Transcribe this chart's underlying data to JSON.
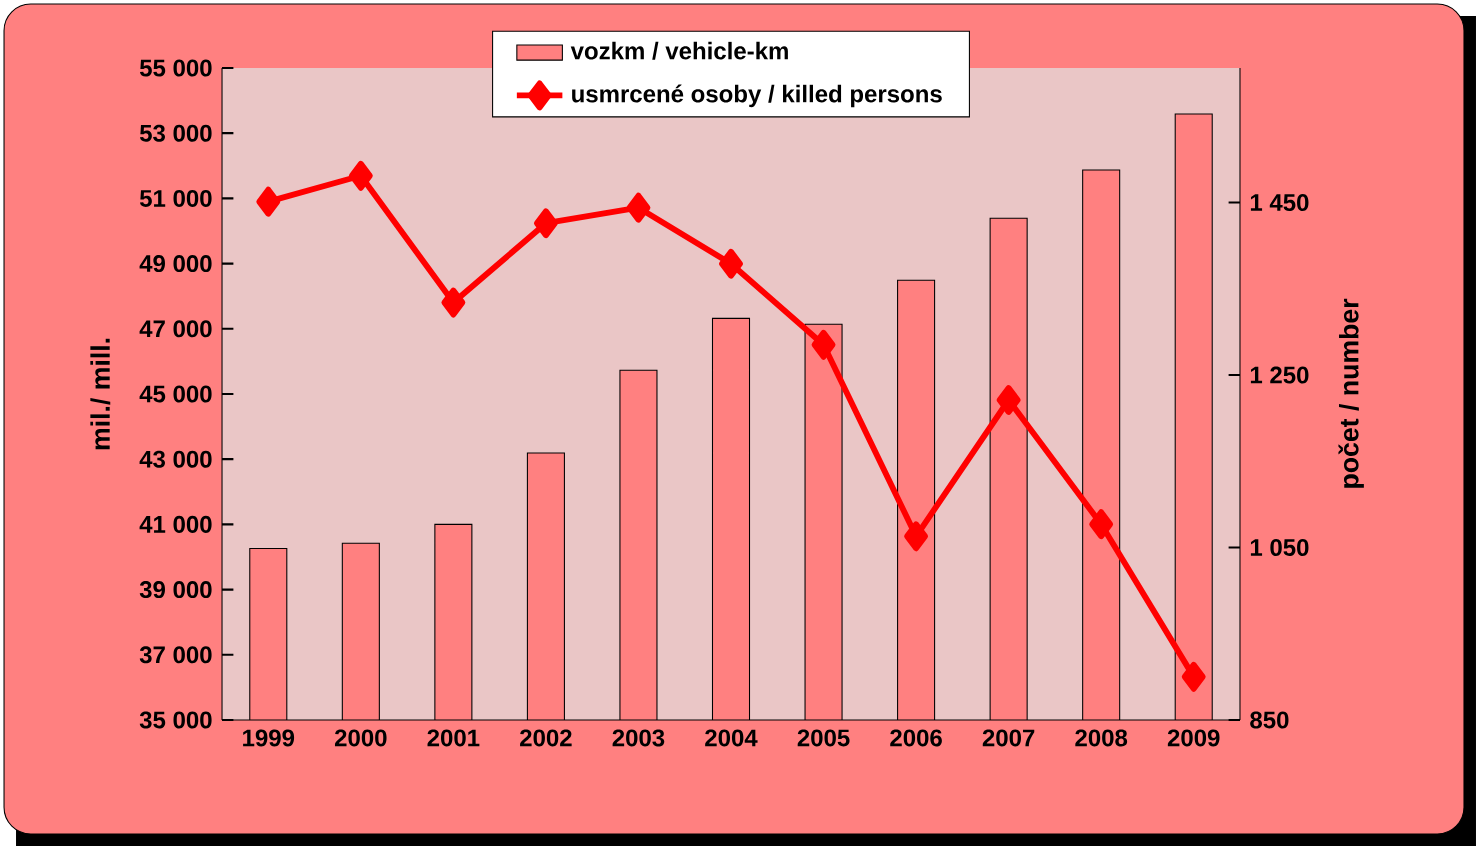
{
  "chart_data": {
    "type": "bar",
    "categories": [
      "1999",
      "2000",
      "2001",
      "2002",
      "2003",
      "2004",
      "2005",
      "2006",
      "2007",
      "2008",
      "2009"
    ],
    "series": [
      {
        "name": "vozkm / vehicle-km",
        "color": "#ff8080",
        "values": [
          40260,
          40420,
          41000,
          43190,
          45730,
          47320,
          47140,
          48490,
          50390,
          51870,
          53590
        ]
      },
      {
        "name": "usmrcené osoby / killed persons",
        "type": "line",
        "axis": "y2",
        "color": "#ff0000",
        "marker": "diamond",
        "values": [
          1451,
          1481,
          1334,
          1426,
          1444,
          1379,
          1285,
          1063,
          1221,
          1077,
          900
        ]
      }
    ],
    "ylabel": "mil./ mill.",
    "y2label": "počet / number",
    "ylim": [
      35000,
      55000
    ],
    "yticks": [
      {
        "value": 35000,
        "label": "35 000"
      },
      {
        "value": 37000,
        "label": "37 000"
      },
      {
        "value": 39000,
        "label": "39 000"
      },
      {
        "value": 41000,
        "label": "41 000"
      },
      {
        "value": 43000,
        "label": "43 000"
      },
      {
        "value": 45000,
        "label": "45 000"
      },
      {
        "value": 47000,
        "label": "47 000"
      },
      {
        "value": 49000,
        "label": "49 000"
      },
      {
        "value": 51000,
        "label": "51 000"
      },
      {
        "value": 53000,
        "label": "53 000"
      },
      {
        "value": 55000,
        "label": "55 000"
      }
    ],
    "y2lim": [
      850,
      1606
    ],
    "y2ticks": [
      850,
      {
        "value": 1050,
        "label": "1 050"
      },
      {
        "value": 1250,
        "label": "1 250"
      },
      {
        "value": 1450,
        "label": "1 450"
      }
    ],
    "legend": "top"
  }
}
